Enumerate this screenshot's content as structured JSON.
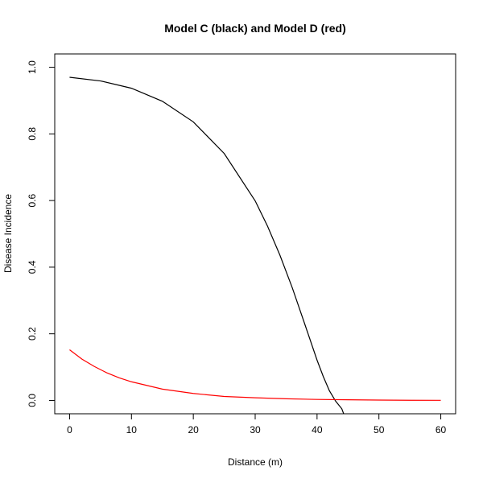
{
  "chart_data": {
    "type": "line",
    "title": "Model C (black) and Model D (red)",
    "xlabel": "Distance (m)",
    "ylabel": "Disease Incidence",
    "xlim": [
      -2.4,
      62.4
    ],
    "ylim": [
      -0.04,
      1.04
    ],
    "xticks": [
      0,
      10,
      20,
      30,
      40,
      50,
      60
    ],
    "xtick_labels": [
      "0",
      "10",
      "20",
      "30",
      "40",
      "50",
      "60"
    ],
    "yticks": [
      0.0,
      0.2,
      0.4,
      0.6,
      0.8,
      1.0
    ],
    "ytick_labels": [
      "0.0",
      "0.2",
      "0.4",
      "0.6",
      "0.8",
      "1.0"
    ],
    "grid": false,
    "legend": "none",
    "series": [
      {
        "color": "#000000",
        "x": [
          0,
          5,
          10,
          15,
          20,
          25,
          30,
          32,
          34,
          36,
          38,
          40,
          41,
          42,
          43,
          44,
          44.3
        ],
        "y": [
          0.97,
          0.959,
          0.937,
          0.898,
          0.836,
          0.741,
          0.599,
          0.523,
          0.436,
          0.338,
          0.23,
          0.121,
          0.072,
          0.029,
          -0.002,
          -0.025,
          -0.04
        ]
      },
      {
        "color": "#ff0000",
        "x": [
          0,
          2,
          4,
          6,
          8,
          10,
          15,
          20,
          25,
          30,
          35,
          40,
          45,
          50,
          55,
          60
        ],
        "y": [
          0.152,
          0.124,
          0.102,
          0.083,
          0.068,
          0.056,
          0.034,
          0.021,
          0.012,
          0.008,
          0.005,
          0.003,
          0.002,
          0.001,
          0.0005,
          0.0003
        ]
      }
    ]
  }
}
